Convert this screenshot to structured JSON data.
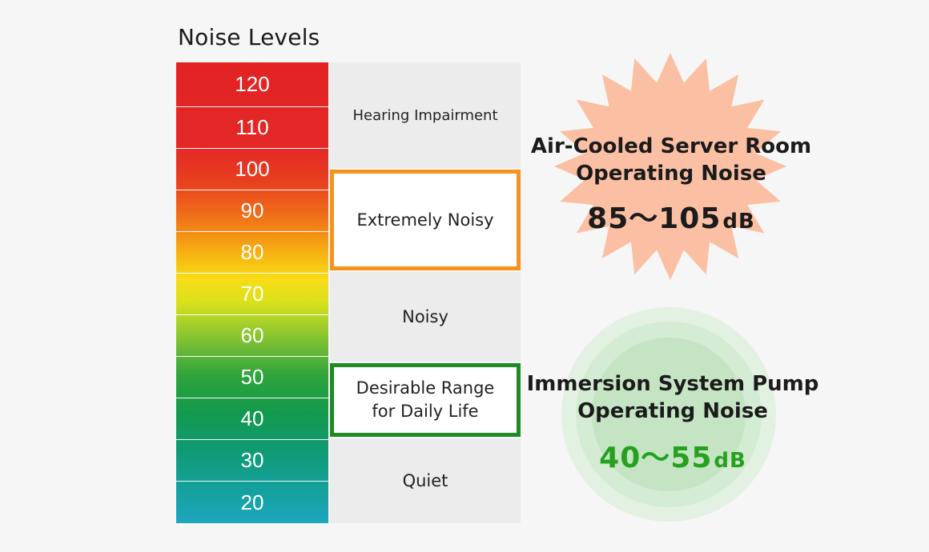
{
  "title": "Noise Levels",
  "levels": [
    "120",
    "110",
    "100",
    "90",
    "80",
    "70",
    "60",
    "50",
    "40",
    "30",
    "20"
  ],
  "categories": {
    "hearing": "Hearing Impairment",
    "extreme": "Extremely Noisy",
    "noisy": "Noisy",
    "desirable_line1": "Desirable Range",
    "desirable_line2": "for Daily Life",
    "quiet": "Quiet"
  },
  "air_cooled": {
    "line1": "Air-Cooled Server Room",
    "line2": "Operating Noise",
    "value": "85～105",
    "unit": "dB"
  },
  "pump": {
    "line1": "Immersion System Pump",
    "line2": "Operating Noise",
    "value": "40～55",
    "unit": "dB"
  },
  "colors": {
    "extreme_border": "#f7931d",
    "desirable_border": "#1d8b23",
    "pump_value": "#26a11f",
    "star_fill": "#fbbfa3",
    "circle_fill": "#c8e6c8"
  }
}
